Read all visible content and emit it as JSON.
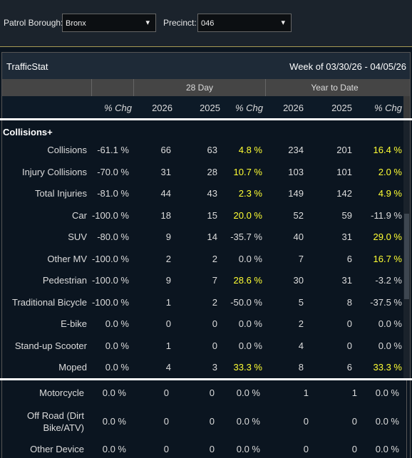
{
  "filters": [
    {
      "label": "Patrol Borough:",
      "value": "Bronx"
    },
    {
      "label": "Precinct:",
      "value": "046"
    }
  ],
  "panel": {
    "title": "TrafficStat",
    "week": "Week of 03/30/26 - 04/05/26"
  },
  "groups": [
    "28 Day",
    "Year to Date"
  ],
  "columns": [
    "% Chg",
    "2026",
    "2025",
    "% Chg",
    "2026",
    "2025",
    "% Chg"
  ],
  "section": "Collisions+",
  "highlight_color": "#ffff33",
  "rows": [
    {
      "label": "Collisions",
      "cells": [
        "-61.1 %",
        "66",
        "63",
        "4.8 %",
        "234",
        "201",
        "16.4 %"
      ],
      "yellow_cells": [
        3,
        6
      ]
    },
    {
      "label": "Injury Collisions",
      "cells": [
        "-70.0 %",
        "31",
        "28",
        "10.7 %",
        "103",
        "101",
        "2.0 %"
      ],
      "yellow_cells": [
        3,
        6
      ]
    },
    {
      "label": "Total Injuries",
      "cells": [
        "-81.0 %",
        "44",
        "43",
        "2.3 %",
        "149",
        "142",
        "4.9 %"
      ],
      "yellow_cells": [
        3,
        6
      ]
    },
    {
      "label": "Car",
      "cells": [
        "-100.0 %",
        "18",
        "15",
        "20.0 %",
        "52",
        "59",
        "-11.9 %"
      ],
      "yellow_cells": [
        3
      ]
    },
    {
      "label": "SUV",
      "cells": [
        "-80.0 %",
        "9",
        "14",
        "-35.7 %",
        "40",
        "31",
        "29.0 %"
      ],
      "yellow_cells": [
        6
      ]
    },
    {
      "label": "Other MV",
      "cells": [
        "-100.0 %",
        "2",
        "2",
        "0.0 %",
        "7",
        "6",
        "16.7 %"
      ],
      "yellow_cells": [
        6
      ]
    },
    {
      "label": "Pedestrian",
      "cells": [
        "-100.0 %",
        "9",
        "7",
        "28.6 %",
        "30",
        "31",
        "-3.2 %"
      ],
      "yellow_cells": [
        3
      ]
    },
    {
      "label": "Traditional Bicycle",
      "cells": [
        "-100.0 %",
        "1",
        "2",
        "-50.0 %",
        "5",
        "8",
        "-37.5 %"
      ],
      "yellow_cells": []
    },
    {
      "label": "E-bike",
      "cells": [
        "0.0 %",
        "0",
        "0",
        "0.0 %",
        "2",
        "0",
        "0.0 %"
      ],
      "yellow_cells": []
    },
    {
      "label": "Stand-up Scooter",
      "cells": [
        "0.0 %",
        "1",
        "0",
        "0.0 %",
        "4",
        "0",
        "0.0 %"
      ],
      "yellow_cells": []
    },
    {
      "label": "Moped",
      "cells": [
        "0.0 %",
        "4",
        "3",
        "33.3 %",
        "8",
        "6",
        "33.3 %"
      ],
      "yellow_cells": [
        3,
        6
      ]
    }
  ],
  "rows_continued": [
    {
      "label": "Motorcycle",
      "cells": [
        "0.0 %",
        "0",
        "0",
        "0.0 %",
        "1",
        "1",
        "0.0 %"
      ],
      "yellow_cells": []
    },
    {
      "label": "Off Road (Dirt Bike/ATV)",
      "cells": [
        "0.0 %",
        "0",
        "0",
        "0.0 %",
        "0",
        "0",
        "0.0 %"
      ],
      "yellow_cells": []
    },
    {
      "label": "Other Device",
      "cells": [
        "0.0 %",
        "0",
        "0",
        "0.0 %",
        "0",
        "0",
        "0.0 %"
      ],
      "yellow_cells": []
    }
  ]
}
